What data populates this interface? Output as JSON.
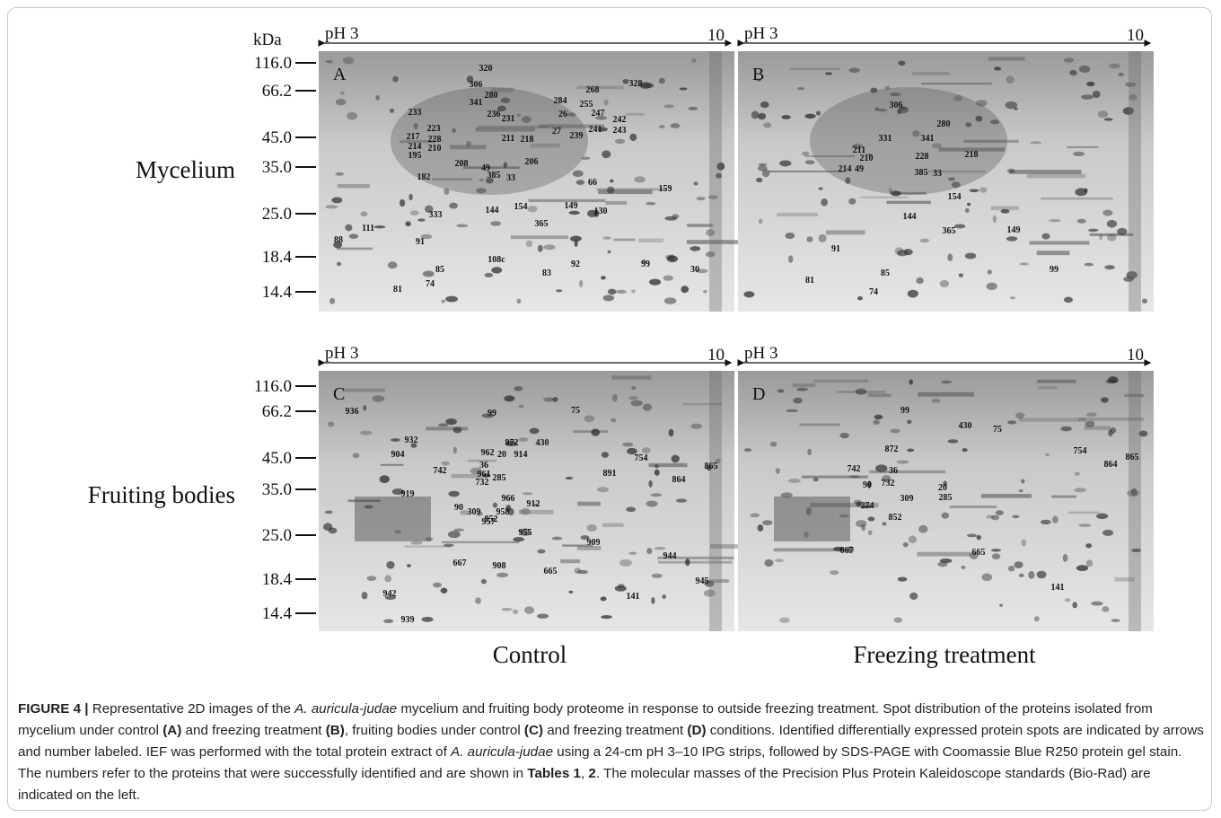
{
  "figure": {
    "kda_label": "kDa",
    "ph_start": "pH 3",
    "ph_end": "10",
    "mw_markers": [
      "116.0",
      "66.2",
      "45.0",
      "35.0",
      "25.0",
      "18.4",
      "14.4"
    ],
    "row_labels": [
      "Mycelium",
      "Fruiting bodies"
    ],
    "column_labels": [
      "Control",
      "Freezing treatment"
    ],
    "panels": [
      {
        "letter": "A",
        "spots": [
          "320",
          "306",
          "280",
          "341",
          "328",
          "268",
          "284",
          "255",
          "233",
          "236",
          "231",
          "26",
          "247",
          "242",
          "241",
          "243",
          "223",
          "27",
          "239",
          "217",
          "228",
          "211",
          "218",
          "214",
          "210",
          "195",
          "208",
          "49",
          "206",
          "182",
          "385",
          "33",
          "66",
          "159",
          "144",
          "154",
          "149",
          "130",
          "333",
          "365",
          "111",
          "91",
          "88",
          "108c",
          "83",
          "92",
          "99",
          "30",
          "85",
          "81",
          "74"
        ]
      },
      {
        "letter": "B",
        "spots": [
          "306",
          "280",
          "331",
          "341",
          "211",
          "210",
          "228",
          "218",
          "214",
          "49",
          "385",
          "33",
          "154",
          "144",
          "365",
          "149",
          "91",
          "85",
          "81",
          "74",
          "99"
        ]
      },
      {
        "letter": "C",
        "spots": [
          "936",
          "99",
          "75",
          "932",
          "872",
          "430",
          "962",
          "20",
          "914",
          "904",
          "754",
          "36",
          "742",
          "865",
          "961",
          "891",
          "864",
          "732",
          "285",
          "919",
          "966",
          "912",
          "90",
          "309",
          "958",
          "957",
          "852",
          "955",
          "909",
          "944",
          "667",
          "908",
          "665",
          "945",
          "942",
          "141",
          "939"
        ]
      },
      {
        "letter": "D",
        "spots": [
          "99",
          "430",
          "75",
          "872",
          "754",
          "865",
          "864",
          "742",
          "36",
          "20",
          "90",
          "732",
          "309",
          "285",
          "274",
          "852",
          "667",
          "665",
          "141"
        ]
      }
    ],
    "caption": [
      {
        "text": "FIGURE 4 |",
        "style": "bold"
      },
      {
        "text": " Representative 2D images of the ",
        "style": "normal"
      },
      {
        "text": "A. auricula-judae",
        "style": "italic"
      },
      {
        "text": " mycelium and fruiting body proteome in response to outside freezing treatment. Spot distribution of the proteins isolated from mycelium under control ",
        "style": "normal"
      },
      {
        "text": "(A)",
        "style": "bold"
      },
      {
        "text": " and freezing treatment ",
        "style": "normal"
      },
      {
        "text": "(B)",
        "style": "bold"
      },
      {
        "text": ", fruiting bodies under control ",
        "style": "normal"
      },
      {
        "text": "(C)",
        "style": "bold"
      },
      {
        "text": " and freezing treatment ",
        "style": "normal"
      },
      {
        "text": "(D)",
        "style": "bold"
      },
      {
        "text": " conditions. Identified differentially expressed protein spots are indicated by arrows and number labeled. IEF was performed with the total protein extract of ",
        "style": "normal"
      },
      {
        "text": "A. auricula-judae",
        "style": "italic"
      },
      {
        "text": " using a 24-cm pH 3–10 IPG strips, followed by SDS-PAGE with Coomassie Blue R250 protein gel stain. The numbers refer to the proteins that were successfully identified and are shown in ",
        "style": "normal"
      },
      {
        "text": "Tables 1",
        "style": "bold"
      },
      {
        "text": ", ",
        "style": "normal"
      },
      {
        "text": "2",
        "style": "bold"
      },
      {
        "text": ". The molecular masses of the Precision Plus Protein Kaleidoscope standards (Bio-Rad) are indicated on the left.",
        "style": "normal"
      }
    ]
  }
}
